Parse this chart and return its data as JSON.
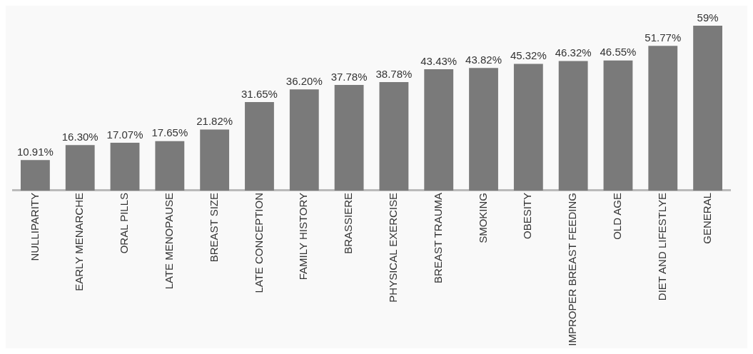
{
  "chart_data": {
    "type": "bar",
    "categories": [
      "NULLIPARITY",
      "EARLY MENARCHE",
      "ORAL PILLS",
      "LATE MENOPAUSE",
      "BREAST SIZE",
      "LATE CONCEPTION",
      "FAMILY HISTORY",
      "BRASSIERE",
      "PHYSICAL EXERCISE",
      "BREAST TRAUMA",
      "SMOKING",
      "OBESITY",
      "IMPROPER BREAST FEEDING",
      "OLD AGE",
      "DIET AND LIFESTLYE",
      "GENERAL"
    ],
    "values": [
      10.91,
      16.3,
      17.07,
      17.65,
      21.82,
      31.65,
      36.2,
      37.78,
      38.78,
      43.43,
      43.82,
      45.32,
      46.32,
      46.55,
      51.77,
      59
    ],
    "value_labels": [
      "10.91%",
      "16.30%",
      "17.07%",
      "17.65%",
      "21.82%",
      "31.65%",
      "36.20%",
      "37.78%",
      "38.78%",
      "43.43%",
      "43.82%",
      "45.32%",
      "46.32%",
      "46.55%",
      "51.77%",
      "59%"
    ],
    "color": "#7a7a7a",
    "grid": false,
    "legend": false
  }
}
